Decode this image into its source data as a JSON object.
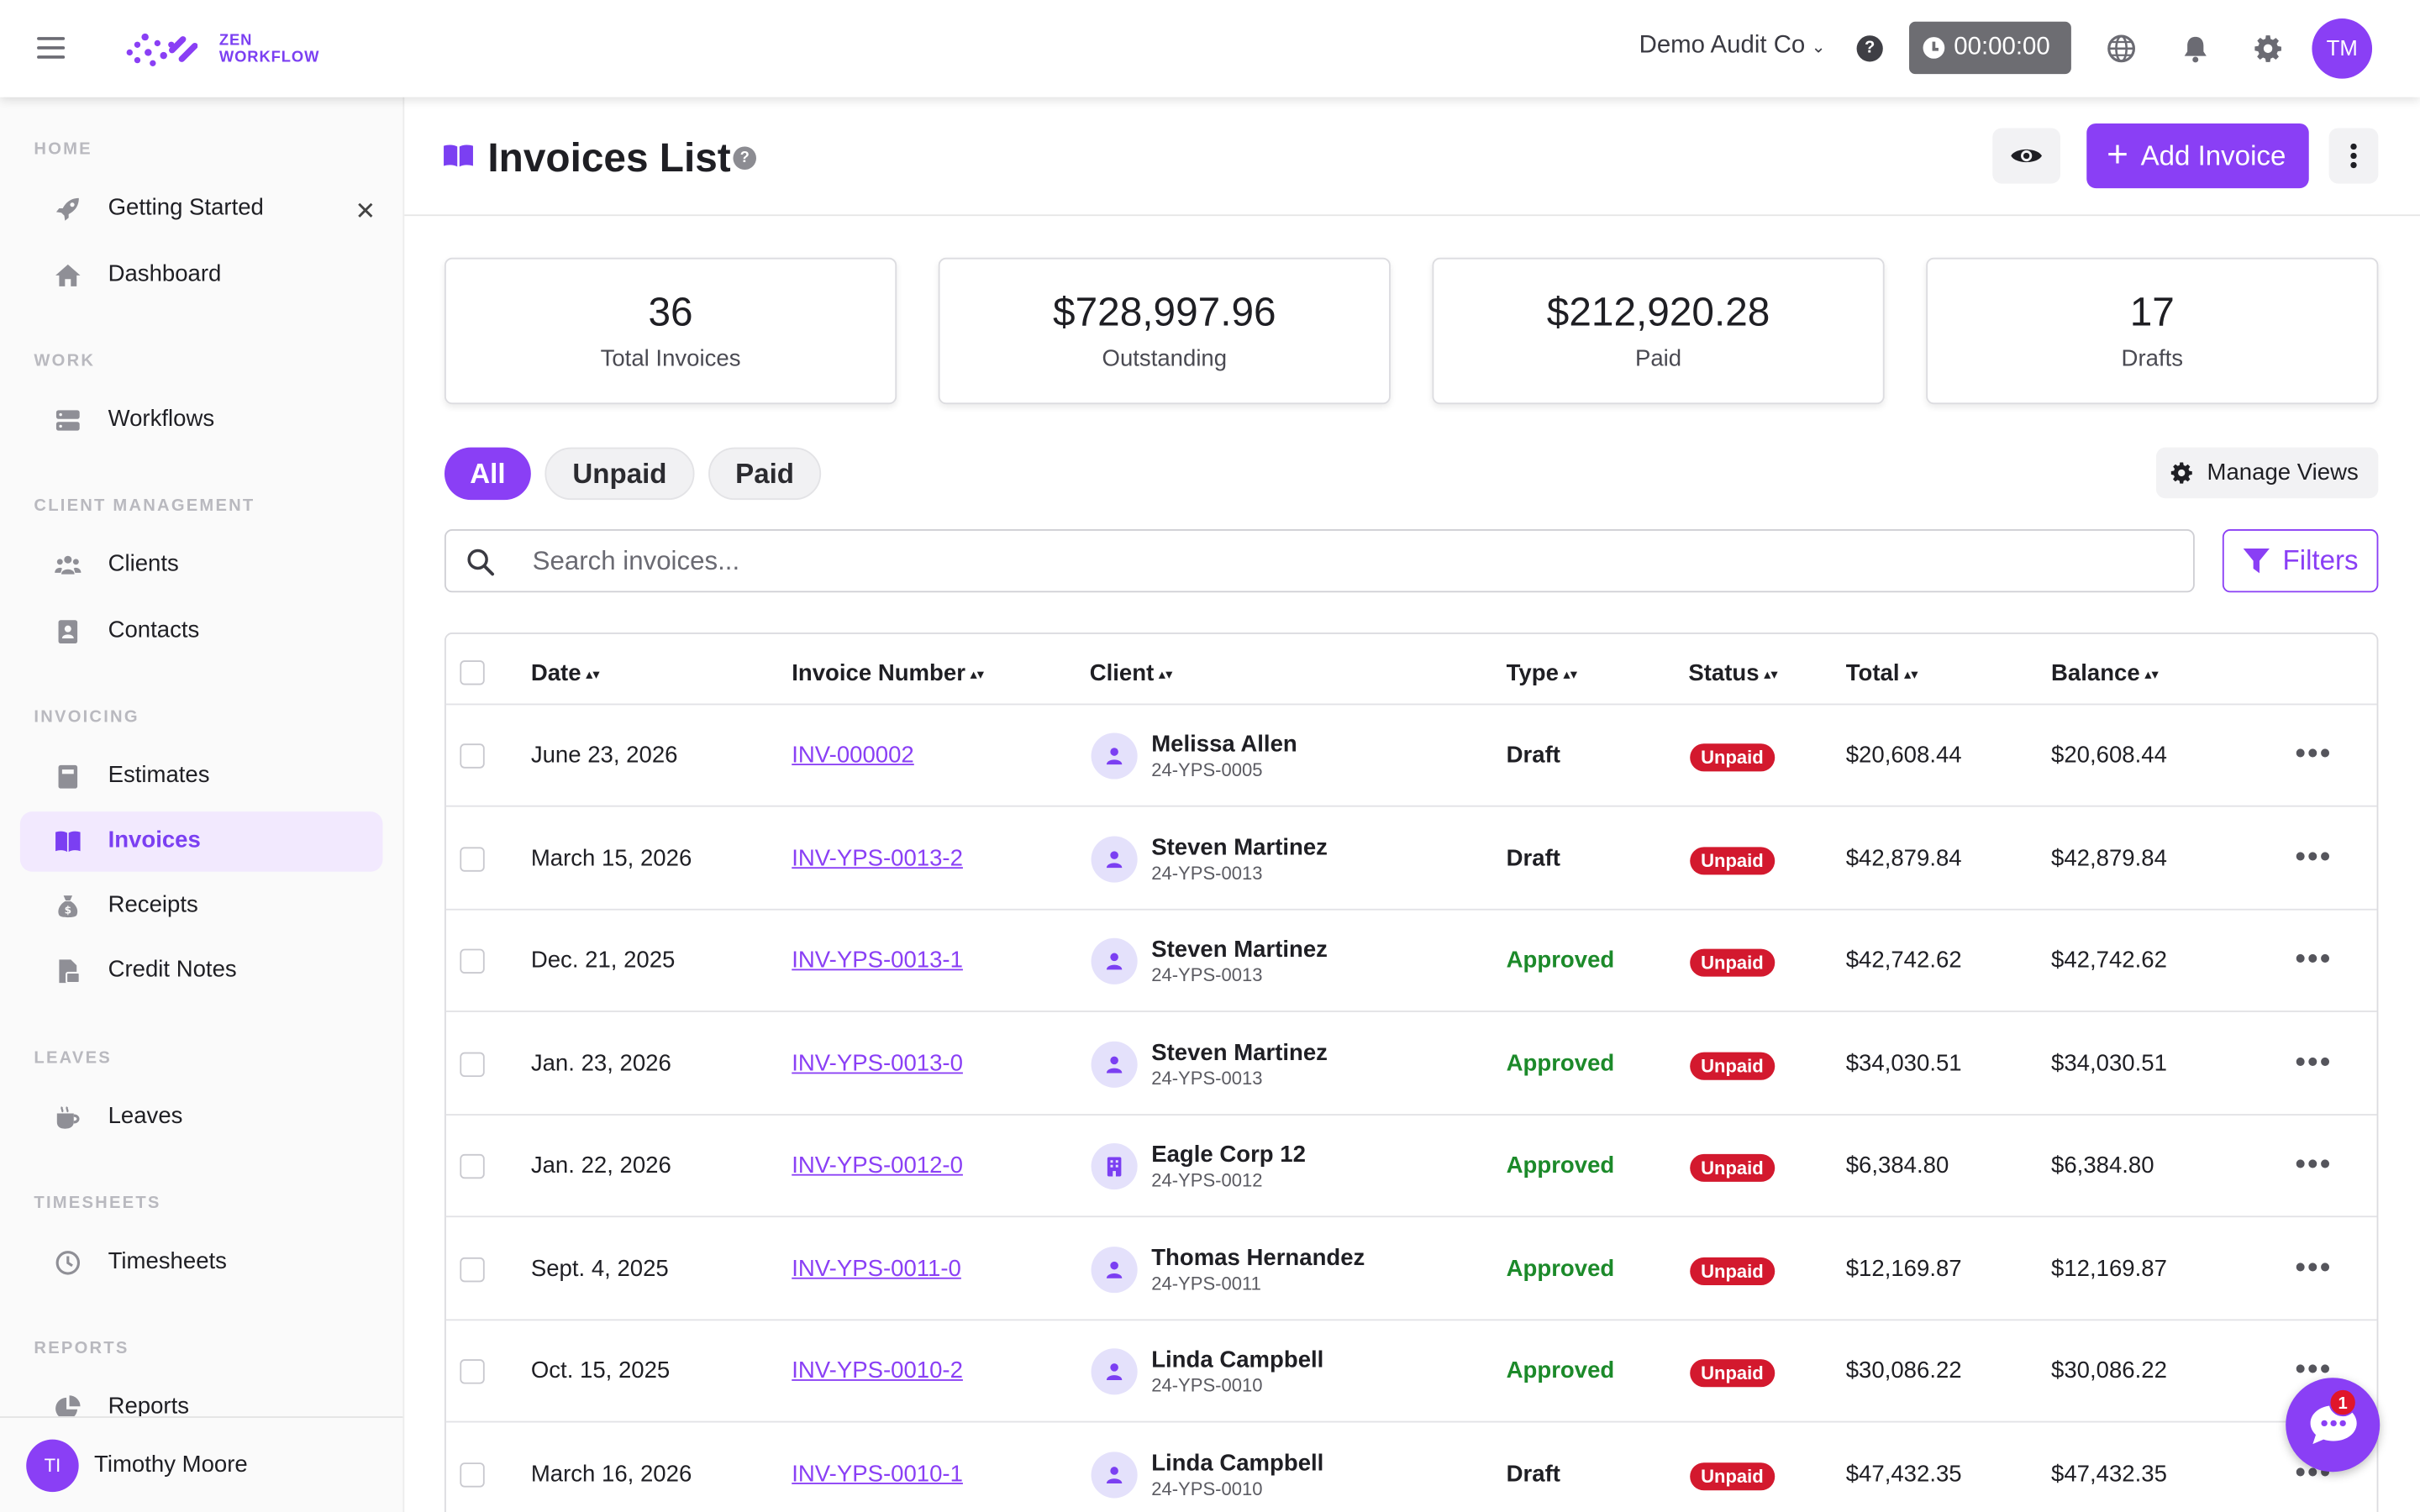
{
  "header": {
    "logo_line1": "ZEN",
    "logo_line2": "WORKFLOW",
    "company": "Demo Audit Co",
    "timer": "00:00:00",
    "user_initials": "TM"
  },
  "sidebar": {
    "sections": {
      "home": "HOME",
      "work": "WORK",
      "client_management": "CLIENT MANAGEMENT",
      "invoicing": "INVOICING",
      "leaves": "LEAVES",
      "timesheets": "TIMESHEETS",
      "reports": "REPORTS"
    },
    "items": {
      "getting_started": "Getting Started",
      "dashboard": "Dashboard",
      "workflows": "Workflows",
      "clients": "Clients",
      "contacts": "Contacts",
      "estimates": "Estimates",
      "invoices": "Invoices",
      "receipts": "Receipts",
      "credit_notes": "Credit Notes",
      "leaves": "Leaves",
      "timesheets": "Timesheets",
      "reports": "Reports"
    },
    "close_glyph": "✕",
    "user": {
      "initials": "TI",
      "name": "Timothy Moore"
    }
  },
  "page": {
    "title": "Invoices List",
    "add_button": "Add Invoice",
    "accent": "#8a3ff5"
  },
  "stats": [
    {
      "value": "36",
      "label": "Total Invoices"
    },
    {
      "value": "$728,997.96",
      "label": "Outstanding"
    },
    {
      "value": "$212,920.28",
      "label": "Paid"
    },
    {
      "value": "17",
      "label": "Drafts"
    }
  ],
  "tabs": {
    "all": "All",
    "unpaid": "Unpaid",
    "paid": "Paid"
  },
  "manage_views": "Manage Views",
  "search": {
    "placeholder": "Search invoices..."
  },
  "filters": "Filters",
  "table": {
    "columns": {
      "date": "Date",
      "invoice_number": "Invoice Number",
      "client": "Client",
      "type": "Type",
      "status": "Status",
      "total": "Total",
      "balance": "Balance"
    },
    "rows": [
      {
        "date": "June 23, 2026",
        "number": "INV-000002",
        "client": "Melissa Allen",
        "code": "24-YPS-0005",
        "type": "Draft",
        "status": "Unpaid",
        "total": "$20,608.44",
        "balance": "$20,608.44",
        "client_kind": "person"
      },
      {
        "date": "March 15, 2026",
        "number": "INV-YPS-0013-2",
        "client": "Steven Martinez",
        "code": "24-YPS-0013",
        "type": "Draft",
        "status": "Unpaid",
        "total": "$42,879.84",
        "balance": "$42,879.84",
        "client_kind": "person"
      },
      {
        "date": "Dec. 21, 2025",
        "number": "INV-YPS-0013-1",
        "client": "Steven Martinez",
        "code": "24-YPS-0013",
        "type": "Approved",
        "status": "Unpaid",
        "total": "$42,742.62",
        "balance": "$42,742.62",
        "client_kind": "person"
      },
      {
        "date": "Jan. 23, 2026",
        "number": "INV-YPS-0013-0",
        "client": "Steven Martinez",
        "code": "24-YPS-0013",
        "type": "Approved",
        "status": "Unpaid",
        "total": "$34,030.51",
        "balance": "$34,030.51",
        "client_kind": "person"
      },
      {
        "date": "Jan. 22, 2026",
        "number": "INV-YPS-0012-0",
        "client": "Eagle Corp 12",
        "code": "24-YPS-0012",
        "type": "Approved",
        "status": "Unpaid",
        "total": "$6,384.80",
        "balance": "$6,384.80",
        "client_kind": "company"
      },
      {
        "date": "Sept. 4, 2025",
        "number": "INV-YPS-0011-0",
        "client": "Thomas Hernandez",
        "code": "24-YPS-0011",
        "type": "Approved",
        "status": "Unpaid",
        "total": "$12,169.87",
        "balance": "$12,169.87",
        "client_kind": "person"
      },
      {
        "date": "Oct. 15, 2025",
        "number": "INV-YPS-0010-2",
        "client": "Linda Campbell",
        "code": "24-YPS-0010",
        "type": "Approved",
        "status": "Unpaid",
        "total": "$30,086.22",
        "balance": "$30,086.22",
        "client_kind": "person"
      },
      {
        "date": "March 16, 2026",
        "number": "INV-YPS-0010-1",
        "client": "Linda Campbell",
        "code": "24-YPS-0010",
        "type": "Draft",
        "status": "Unpaid",
        "total": "$47,432.35",
        "balance": "$47,432.35",
        "client_kind": "person"
      }
    ]
  },
  "chat": {
    "unread": "1"
  }
}
